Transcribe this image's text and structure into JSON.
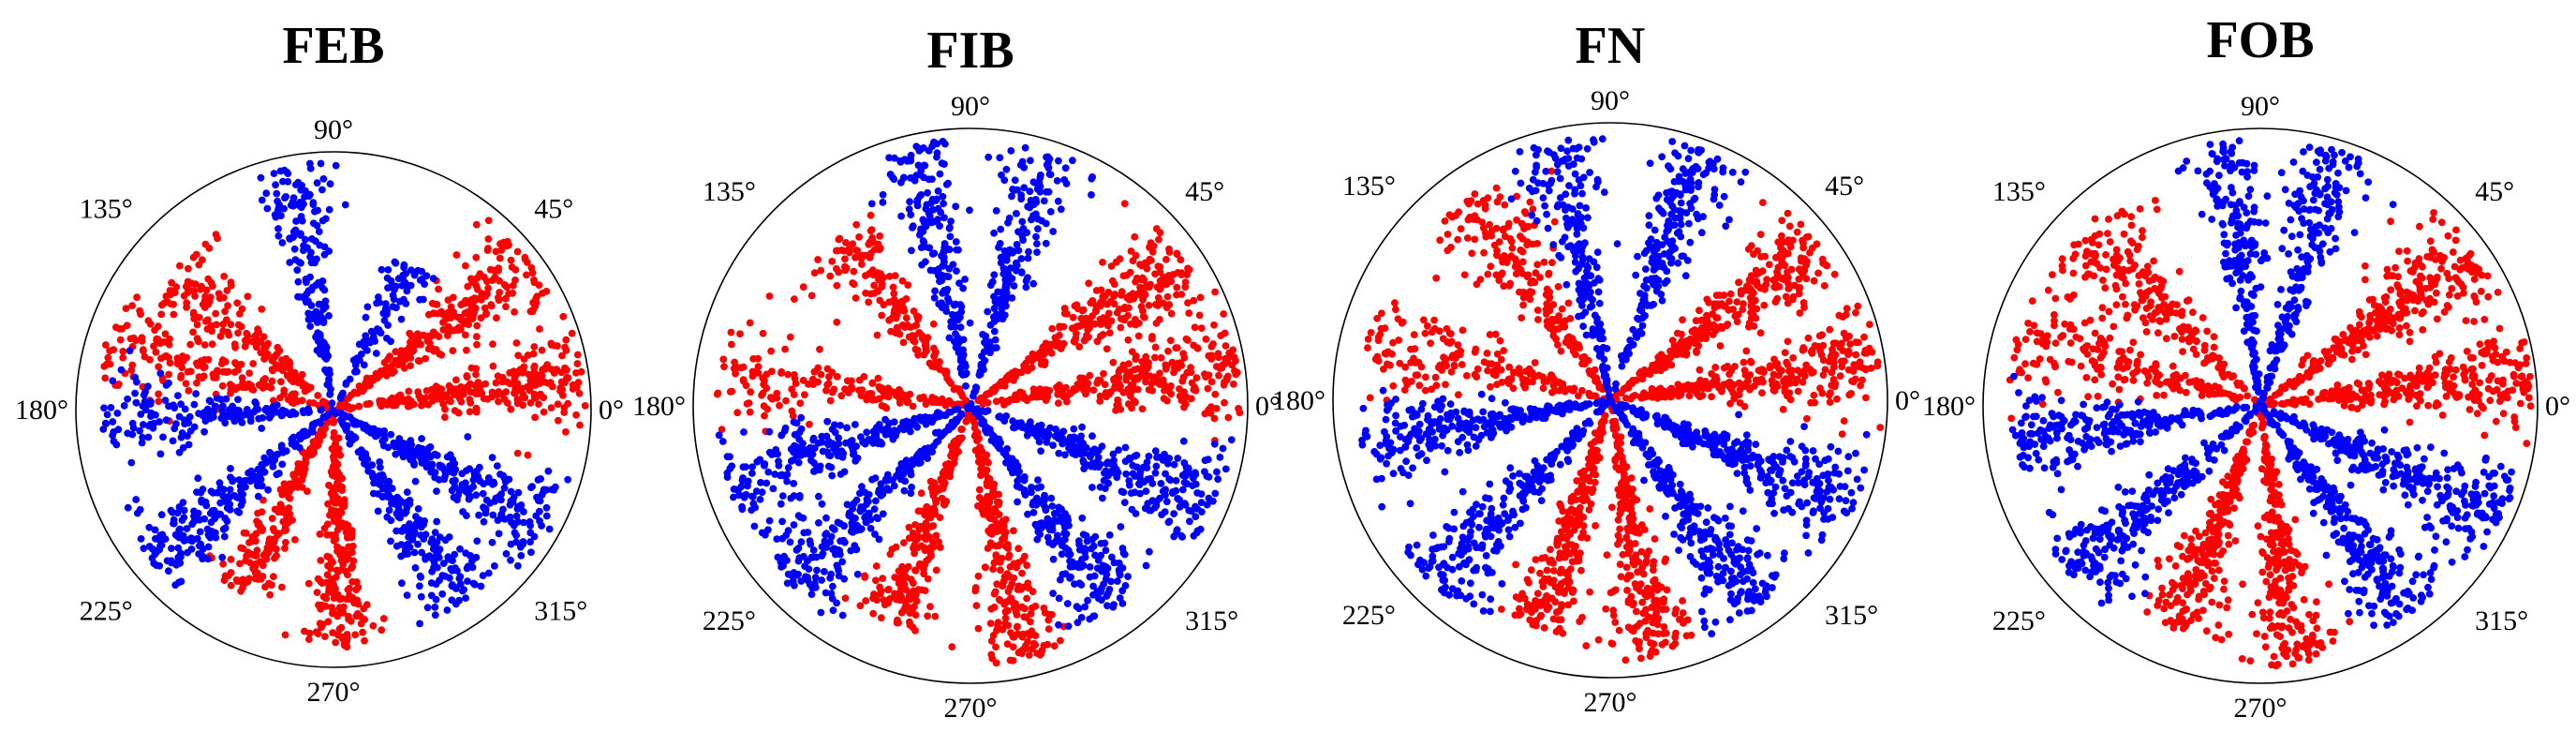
{
  "colors": {
    "red": "#ff0000",
    "blue": "#0000ff"
  },
  "chart_data": [
    {
      "type": "scatter",
      "coordinate_system": "polar",
      "title": "FEB",
      "angular_ticks": [
        "0°",
        "45°",
        "90°",
        "135°",
        "180°",
        "225°",
        "270°",
        "315°"
      ],
      "radial_range": [
        0,
        1
      ],
      "grid": false,
      "series": [
        {
          "color": "#ff0000",
          "arms": [
            {
              "angle": 8,
              "spread": 3.2,
              "extent": 0.98,
              "n": 260
            },
            {
              "angle": 37,
              "spread": 3.5,
              "extent": 0.95,
              "n": 260
            },
            {
              "angle": 140,
              "spread": 4.5,
              "extent": 0.82,
              "n": 160
            },
            {
              "angle": 163,
              "spread": 4.5,
              "extent": 0.92,
              "n": 170
            },
            {
              "angle": 242,
              "spread": 3.0,
              "extent": 0.8,
              "n": 190
            },
            {
              "angle": 272,
              "spread": 3.0,
              "extent": 0.93,
              "n": 230
            }
          ]
        },
        {
          "color": "#0000ff",
          "arms": [
            {
              "angle": 62,
              "spread": 3.5,
              "extent": 0.64,
              "n": 90
            },
            {
              "angle": 100,
              "spread": 3.0,
              "extent": 0.96,
              "n": 180
            },
            {
              "angle": 183,
              "spread": 3.5,
              "extent": 0.9,
              "n": 170
            },
            {
              "angle": 220,
              "spread": 3.5,
              "extent": 0.92,
              "n": 230
            },
            {
              "angle": 304,
              "spread": 3.5,
              "extent": 0.9,
              "n": 210
            },
            {
              "angle": 331,
              "spread": 3.5,
              "extent": 0.96,
              "n": 260
            }
          ]
        }
      ]
    },
    {
      "type": "scatter",
      "coordinate_system": "polar",
      "title": "FIB",
      "angular_ticks": [
        "0°",
        "45°",
        "90°",
        "135°",
        "180°",
        "225°",
        "270°",
        "315°"
      ],
      "radial_range": [
        0,
        1
      ],
      "grid": false,
      "series": [
        {
          "color": "#ff0000",
          "arms": [
            {
              "angle": 9,
              "spread": 3.3,
              "extent": 0.98,
              "n": 280
            },
            {
              "angle": 35,
              "spread": 3.5,
              "extent": 0.93,
              "n": 280
            },
            {
              "angle": 128,
              "spread": 4.0,
              "extent": 0.78,
              "n": 170
            },
            {
              "angle": 172,
              "spread": 4.0,
              "extent": 0.92,
              "n": 160
            },
            {
              "angle": 250,
              "spread": 3.0,
              "extent": 0.84,
              "n": 220
            },
            {
              "angle": 282,
              "spread": 3.0,
              "extent": 0.94,
              "n": 240
            }
          ]
        },
        {
          "color": "#0000ff",
          "arms": [
            {
              "angle": 73,
              "spread": 3.0,
              "extent": 0.96,
              "n": 190
            },
            {
              "angle": 101,
              "spread": 3.0,
              "extent": 0.96,
              "n": 200
            },
            {
              "angle": 197,
              "spread": 3.5,
              "extent": 0.92,
              "n": 240
            },
            {
              "angle": 225,
              "spread": 3.5,
              "extent": 0.92,
              "n": 250
            },
            {
              "angle": 305,
              "spread": 3.5,
              "extent": 0.9,
              "n": 240
            },
            {
              "angle": 338,
              "spread": 3.5,
              "extent": 0.95,
              "n": 270
            }
          ]
        }
      ]
    },
    {
      "type": "scatter",
      "coordinate_system": "polar",
      "title": "FN",
      "angular_ticks": [
        "0°",
        "45°",
        "90°",
        "135°",
        "180°",
        "225°",
        "270°",
        "315°"
      ],
      "radial_range": [
        0,
        1
      ],
      "grid": false,
      "series": [
        {
          "color": "#ff0000",
          "arms": [
            {
              "angle": 8,
              "spread": 3.3,
              "extent": 0.98,
              "n": 280
            },
            {
              "angle": 37,
              "spread": 3.5,
              "extent": 0.94,
              "n": 280
            },
            {
              "angle": 125,
              "spread": 4.0,
              "extent": 0.9,
              "n": 200
            },
            {
              "angle": 165,
              "spread": 4.0,
              "extent": 0.9,
              "n": 180
            },
            {
              "angle": 253,
              "spread": 3.0,
              "extent": 0.86,
              "n": 240
            },
            {
              "angle": 280,
              "spread": 3.0,
              "extent": 0.94,
              "n": 250
            }
          ]
        },
        {
          "color": "#0000ff",
          "arms": [
            {
              "angle": 70,
              "spread": 3.0,
              "extent": 0.96,
              "n": 210
            },
            {
              "angle": 102,
              "spread": 3.0,
              "extent": 0.96,
              "n": 200
            },
            {
              "angle": 190,
              "spread": 3.5,
              "extent": 0.92,
              "n": 250
            },
            {
              "angle": 226,
              "spread": 3.5,
              "extent": 0.92,
              "n": 250
            },
            {
              "angle": 305,
              "spread": 3.5,
              "extent": 0.92,
              "n": 260
            },
            {
              "angle": 337,
              "spread": 3.5,
              "extent": 0.96,
              "n": 280
            }
          ]
        }
      ]
    },
    {
      "type": "scatter",
      "coordinate_system": "polar",
      "title": "FOB",
      "angular_ticks": [
        "0°",
        "45°",
        "90°",
        "135°",
        "180°",
        "225°",
        "270°",
        "315°"
      ],
      "radial_range": [
        0,
        1
      ],
      "grid": false,
      "series": [
        {
          "color": "#ff0000",
          "arms": [
            {
              "angle": 7,
              "spread": 3.3,
              "extent": 0.98,
              "n": 290
            },
            {
              "angle": 36,
              "spread": 3.5,
              "extent": 0.95,
              "n": 290
            },
            {
              "angle": 135,
              "spread": 4.0,
              "extent": 0.9,
              "n": 200
            },
            {
              "angle": 163,
              "spread": 4.0,
              "extent": 0.92,
              "n": 180
            },
            {
              "angle": 250,
              "spread": 3.0,
              "extent": 0.86,
              "n": 240
            },
            {
              "angle": 278,
              "spread": 3.0,
              "extent": 0.94,
              "n": 250
            }
          ]
        },
        {
          "color": "#0000ff",
          "arms": [
            {
              "angle": 73,
              "spread": 3.0,
              "extent": 0.96,
              "n": 200
            },
            {
              "angle": 98,
              "spread": 3.0,
              "extent": 0.96,
              "n": 190
            },
            {
              "angle": 188,
              "spread": 3.5,
              "extent": 0.9,
              "n": 230
            },
            {
              "angle": 222,
              "spread": 3.5,
              "extent": 0.92,
              "n": 250
            },
            {
              "angle": 306,
              "spread": 3.5,
              "extent": 0.92,
              "n": 260
            },
            {
              "angle": 335,
              "spread": 3.5,
              "extent": 0.96,
              "n": 280
            }
          ]
        }
      ]
    }
  ]
}
